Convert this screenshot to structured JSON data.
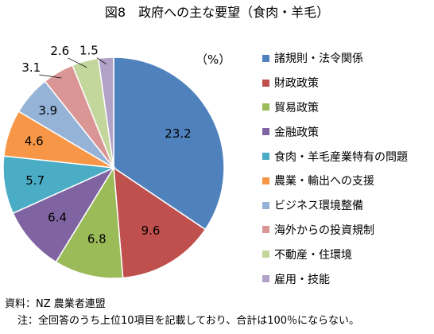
{
  "title": "図8　政府への主な要望（食肉・羊毛）",
  "unit_label": "（%）",
  "source": "資料：NZ 農業者連盟",
  "note": "注：全回答のうち上位10項目を記載しており、合計は100％にならない。",
  "chart_data": {
    "type": "pie",
    "title": "図8　政府への主な要望（食肉・羊毛）",
    "unit": "（%）",
    "legend_position": "right",
    "slices": [
      {
        "label": "諸規則・法令関係",
        "value": 23.2,
        "value_label": "23.2",
        "color": "#4F81BD"
      },
      {
        "label": "財政政策",
        "value": 9.6,
        "value_label": "9.6",
        "color": "#C0504D"
      },
      {
        "label": "貿易政策",
        "value": 6.8,
        "value_label": "6.8",
        "color": "#9BBB59"
      },
      {
        "label": "金融政策",
        "value": 6.4,
        "value_label": "6.4",
        "color": "#8064A2"
      },
      {
        "label": "食肉・羊毛産業特有の問題",
        "value": 5.7,
        "value_label": "5.7",
        "color": "#4BACC6"
      },
      {
        "label": "農業・輸出への支援",
        "value": 4.6,
        "value_label": "4.6",
        "color": "#F79646"
      },
      {
        "label": "ビジネス環境整備",
        "value": 3.9,
        "value_label": "3.9",
        "color": "#95B3D7"
      },
      {
        "label": "海外からの投資規制",
        "value": 3.1,
        "value_label": "3.1",
        "color": "#D99694"
      },
      {
        "label": "不動産・住環境",
        "value": 2.6,
        "value_label": "2.6",
        "color": "#C3D69B"
      },
      {
        "label": "雇用・技能",
        "value": 1.5,
        "value_label": "1.5",
        "color": "#B2A2C7"
      }
    ]
  }
}
